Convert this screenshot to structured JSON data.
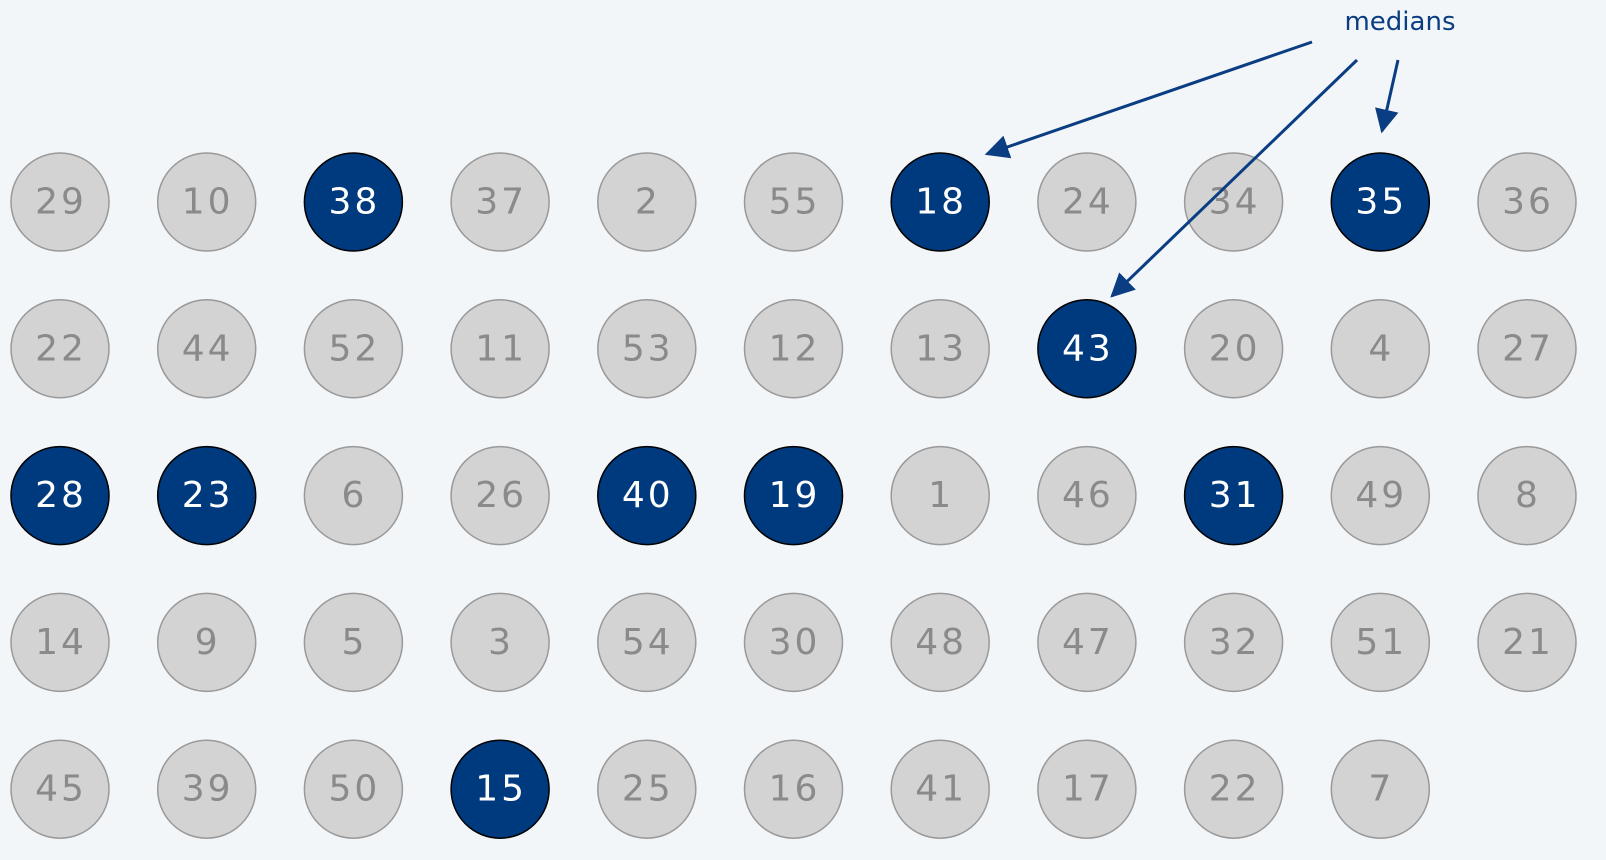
{
  "annotation": "medians",
  "grid": {
    "rows": [
      [
        {
          "text": 29
        },
        {
          "text": 10
        },
        {
          "text": 38,
          "highlight": true
        },
        {
          "text": 37
        },
        {
          "text": 2
        },
        {
          "text": 55
        },
        {
          "text": 18,
          "highlight": true
        },
        {
          "text": 24
        },
        {
          "text": 34
        },
        {
          "text": 35,
          "highlight": true
        },
        {
          "text": 36
        }
      ],
      [
        {
          "text": 22
        },
        {
          "text": 44
        },
        {
          "text": 52
        },
        {
          "text": 11
        },
        {
          "text": 53
        },
        {
          "text": 12
        },
        {
          "text": 13
        },
        {
          "text": 43,
          "highlight": true
        },
        {
          "text": 20
        },
        {
          "text": 4
        },
        {
          "text": 27
        }
      ],
      [
        {
          "text": 28,
          "highlight": true
        },
        {
          "text": 23,
          "highlight": true
        },
        {
          "text": 6
        },
        {
          "text": 26
        },
        {
          "text": 40,
          "highlight": true
        },
        {
          "text": 19,
          "highlight": true
        },
        {
          "text": 1
        },
        {
          "text": 46
        },
        {
          "text": 31,
          "highlight": true
        },
        {
          "text": 49
        },
        {
          "text": 8
        }
      ],
      [
        {
          "text": 14
        },
        {
          "text": 9
        },
        {
          "text": 5
        },
        {
          "text": 3
        },
        {
          "text": 54
        },
        {
          "text": 30
        },
        {
          "text": 48
        },
        {
          "text": 47
        },
        {
          "text": 32
        },
        {
          "text": 51
        },
        {
          "text": 21
        }
      ],
      [
        {
          "text": 45
        },
        {
          "text": 39
        },
        {
          "text": 50
        },
        {
          "text": 15,
          "highlight": true
        },
        {
          "text": 25
        },
        {
          "text": 16
        },
        {
          "text": 41
        },
        {
          "text": 17
        },
        {
          "text": 22
        },
        {
          "text": 7
        }
      ]
    ]
  }
}
